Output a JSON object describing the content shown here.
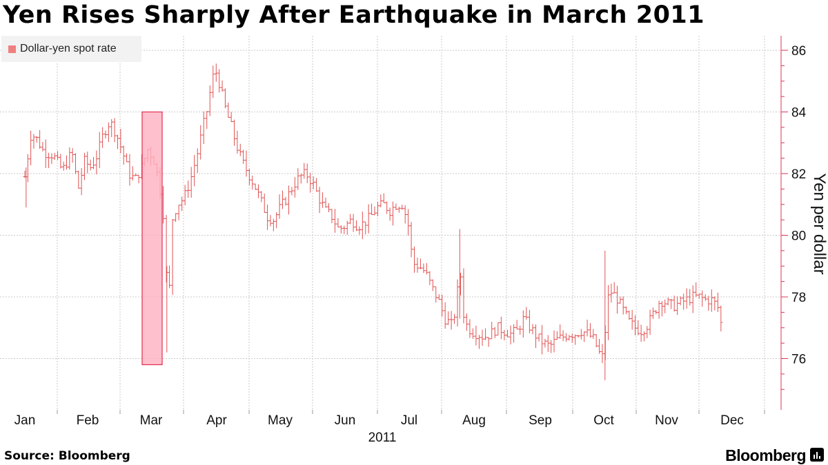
{
  "title": "Yen Rises Sharply After Earthquake in March 2011",
  "source": "Source: Bloomberg",
  "brand": "Bloomberg",
  "legend_label": "Dollar-yen spot rate",
  "colors": {
    "series": "#e05050",
    "highlight_fill": "#ffb0c0",
    "highlight_stroke": "#e03050",
    "axis": "#e03050",
    "grid": "#c8c8c8"
  },
  "chart_data": {
    "type": "line",
    "style": "ohlc-daily",
    "title": "Yen Rises Sharply After Earthquake in March 2011",
    "ylabel": "Yen per dollar",
    "xlabel": "2011",
    "ylim": [
      74.4,
      86.6
    ],
    "yticks": [
      76,
      78,
      80,
      82,
      84,
      86
    ],
    "months": [
      "Jan",
      "Feb",
      "Mar",
      "Apr",
      "May",
      "Jun",
      "Jul",
      "Aug",
      "Sep",
      "Oct",
      "Nov",
      "Dec"
    ],
    "year_label": "2011",
    "legend": {
      "position": "top-left"
    },
    "grid": true,
    "highlight": {
      "start_month": 3.0,
      "end_month": 3.32,
      "low": 75.8,
      "high": 84.0
    },
    "series": [
      {
        "name": "Dollar-yen spot rate",
        "points": [
          {
            "m": 1.0,
            "v": 81.9
          },
          {
            "m": 1.1,
            "v": 83.3
          },
          {
            "m": 1.2,
            "v": 83.1
          },
          {
            "m": 1.3,
            "v": 82.7
          },
          {
            "m": 1.45,
            "v": 82.6
          },
          {
            "m": 1.6,
            "v": 82.1
          },
          {
            "m": 1.75,
            "v": 82.7
          },
          {
            "m": 1.85,
            "v": 81.5
          },
          {
            "m": 1.95,
            "v": 82.4
          },
          {
            "m": 2.05,
            "v": 82.2
          },
          {
            "m": 2.15,
            "v": 82.6
          },
          {
            "m": 2.25,
            "v": 83.3
          },
          {
            "m": 2.35,
            "v": 83.7
          },
          {
            "m": 2.45,
            "v": 83.3
          },
          {
            "m": 2.55,
            "v": 82.7
          },
          {
            "m": 2.65,
            "v": 82.0
          },
          {
            "m": 2.75,
            "v": 81.8
          },
          {
            "m": 2.85,
            "v": 82.2
          },
          {
            "m": 2.95,
            "v": 82.8
          },
          {
            "m": 3.05,
            "v": 82.4
          },
          {
            "m": 3.12,
            "v": 81.7
          },
          {
            "m": 3.18,
            "v": 80.9
          },
          {
            "m": 3.22,
            "v": 79.4
          },
          {
            "m": 3.26,
            "v": 77.2
          },
          {
            "m": 3.32,
            "v": 80.5
          },
          {
            "m": 3.4,
            "v": 81.0
          },
          {
            "m": 3.5,
            "v": 81.2
          },
          {
            "m": 3.6,
            "v": 81.8
          },
          {
            "m": 3.7,
            "v": 82.6
          },
          {
            "m": 3.8,
            "v": 83.6
          },
          {
            "m": 3.87,
            "v": 84.2
          },
          {
            "m": 3.93,
            "v": 85.1
          },
          {
            "m": 4.0,
            "v": 85.3
          },
          {
            "m": 4.08,
            "v": 84.6
          },
          {
            "m": 4.15,
            "v": 84.0
          },
          {
            "m": 4.22,
            "v": 83.6
          },
          {
            "m": 4.3,
            "v": 83.0
          },
          {
            "m": 4.4,
            "v": 82.4
          },
          {
            "m": 4.5,
            "v": 82.0
          },
          {
            "m": 4.6,
            "v": 81.6
          },
          {
            "m": 4.7,
            "v": 81.1
          },
          {
            "m": 4.8,
            "v": 80.6
          },
          {
            "m": 4.9,
            "v": 80.5
          },
          {
            "m": 5.0,
            "v": 80.9
          },
          {
            "m": 5.1,
            "v": 81.2
          },
          {
            "m": 5.2,
            "v": 81.6
          },
          {
            "m": 5.3,
            "v": 81.9
          },
          {
            "m": 5.4,
            "v": 82.0
          },
          {
            "m": 5.5,
            "v": 81.7
          },
          {
            "m": 5.6,
            "v": 81.2
          },
          {
            "m": 5.7,
            "v": 80.8
          },
          {
            "m": 5.8,
            "v": 80.6
          },
          {
            "m": 5.9,
            "v": 80.2
          },
          {
            "m": 6.0,
            "v": 80.3
          },
          {
            "m": 6.1,
            "v": 80.5
          },
          {
            "m": 6.2,
            "v": 80.3
          },
          {
            "m": 6.3,
            "v": 80.4
          },
          {
            "m": 6.4,
            "v": 80.6
          },
          {
            "m": 6.5,
            "v": 80.9
          },
          {
            "m": 6.6,
            "v": 81.0
          },
          {
            "m": 6.7,
            "v": 80.8
          },
          {
            "m": 6.8,
            "v": 81.0
          },
          {
            "m": 6.9,
            "v": 81.0
          },
          {
            "m": 7.0,
            "v": 80.2
          },
          {
            "m": 7.05,
            "v": 79.1
          },
          {
            "m": 7.15,
            "v": 79.0
          },
          {
            "m": 7.25,
            "v": 78.8
          },
          {
            "m": 7.35,
            "v": 78.3
          },
          {
            "m": 7.45,
            "v": 77.9
          },
          {
            "m": 7.55,
            "v": 77.3
          },
          {
            "m": 7.65,
            "v": 77.1
          },
          {
            "m": 7.72,
            "v": 77.6
          },
          {
            "m": 7.78,
            "v": 79.0
          },
          {
            "m": 7.85,
            "v": 77.2
          },
          {
            "m": 7.95,
            "v": 76.9
          },
          {
            "m": 8.05,
            "v": 76.8
          },
          {
            "m": 8.15,
            "v": 76.7
          },
          {
            "m": 8.25,
            "v": 76.8
          },
          {
            "m": 8.35,
            "v": 77.0
          },
          {
            "m": 8.45,
            "v": 76.9
          },
          {
            "m": 8.55,
            "v": 76.8
          },
          {
            "m": 8.65,
            "v": 76.9
          },
          {
            "m": 8.75,
            "v": 77.3
          },
          {
            "m": 8.85,
            "v": 77.0
          },
          {
            "m": 8.95,
            "v": 76.7
          },
          {
            "m": 9.05,
            "v": 76.5
          },
          {
            "m": 9.15,
            "v": 76.4
          },
          {
            "m": 9.25,
            "v": 76.6
          },
          {
            "m": 9.35,
            "v": 76.7
          },
          {
            "m": 9.45,
            "v": 76.8
          },
          {
            "m": 9.55,
            "v": 76.8
          },
          {
            "m": 9.65,
            "v": 76.9
          },
          {
            "m": 9.75,
            "v": 76.8
          },
          {
            "m": 9.85,
            "v": 76.6
          },
          {
            "m": 9.92,
            "v": 76.2
          },
          {
            "m": 10.0,
            "v": 76.0
          },
          {
            "m": 10.05,
            "v": 77.8
          },
          {
            "m": 10.1,
            "v": 78.2
          },
          {
            "m": 10.2,
            "v": 78.0
          },
          {
            "m": 10.3,
            "v": 77.6
          },
          {
            "m": 10.4,
            "v": 77.2
          },
          {
            "m": 10.5,
            "v": 77.0
          },
          {
            "m": 10.6,
            "v": 76.9
          },
          {
            "m": 10.7,
            "v": 77.1
          },
          {
            "m": 10.8,
            "v": 77.5
          },
          {
            "m": 10.9,
            "v": 77.9
          },
          {
            "m": 11.0,
            "v": 77.8
          },
          {
            "m": 11.1,
            "v": 77.7
          },
          {
            "m": 11.2,
            "v": 77.8
          },
          {
            "m": 11.3,
            "v": 77.9
          },
          {
            "m": 11.4,
            "v": 78.0
          },
          {
            "m": 11.5,
            "v": 78.0
          },
          {
            "m": 11.6,
            "v": 77.9
          },
          {
            "m": 11.7,
            "v": 77.9
          },
          {
            "m": 11.8,
            "v": 77.6
          },
          {
            "m": 11.84,
            "v": 77.0
          }
        ]
      }
    ]
  }
}
